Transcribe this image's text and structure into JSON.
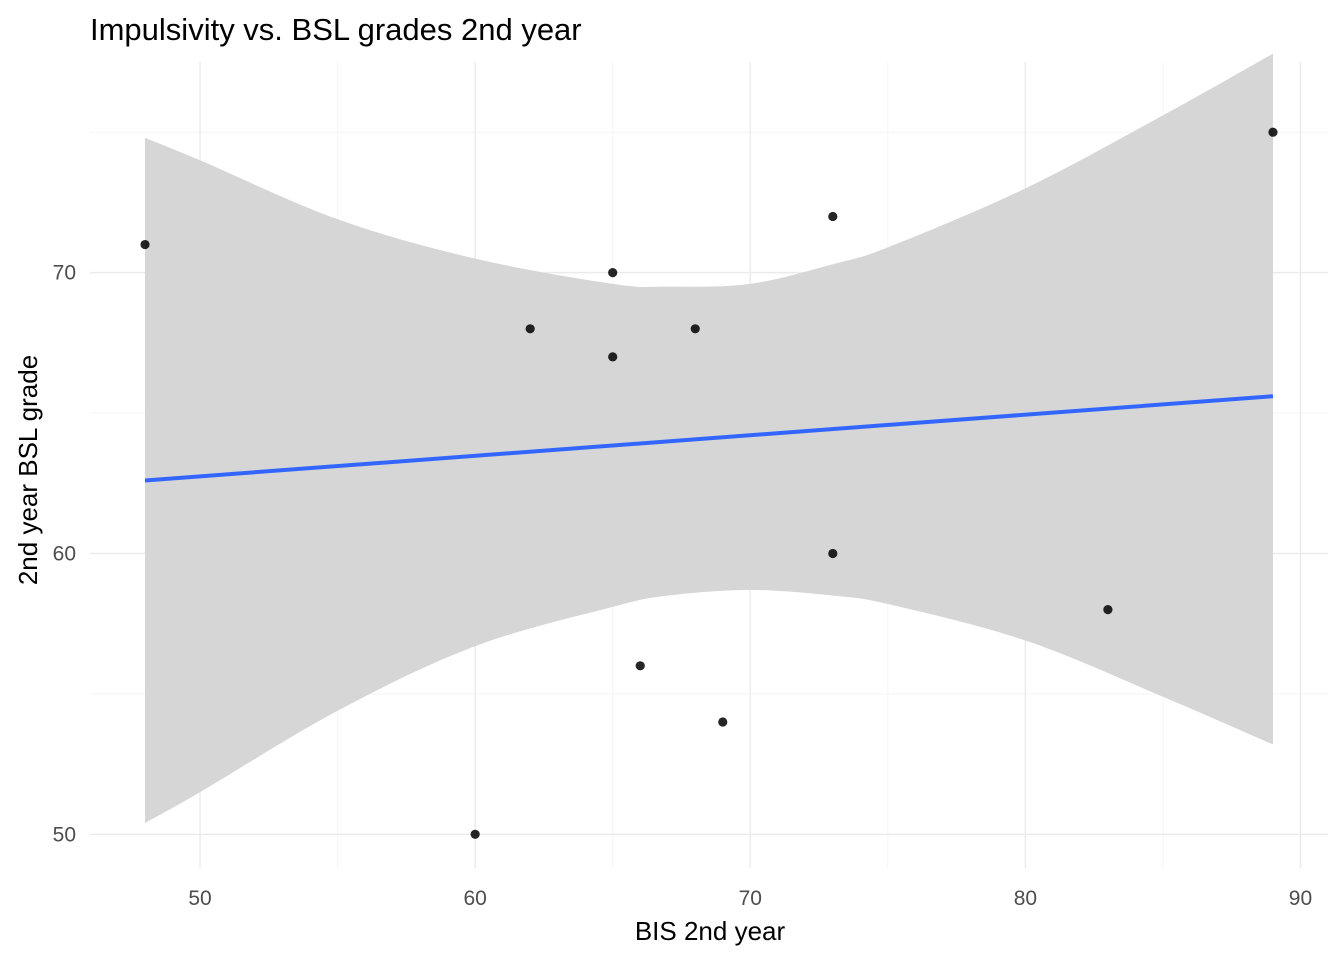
{
  "chart_data": {
    "type": "scatter",
    "title": "Impulsivity vs. BSL grades 2nd year",
    "xlabel": "BIS 2nd year",
    "ylabel": "2nd year BSL grade",
    "xlim": [
      46,
      91
    ],
    "ylim": [
      48.8,
      77.5
    ],
    "x_ticks": [
      50,
      60,
      70,
      80,
      90
    ],
    "y_ticks": [
      50,
      60,
      70
    ],
    "grid": true,
    "points": [
      {
        "x": 48,
        "y": 71
      },
      {
        "x": 60,
        "y": 50
      },
      {
        "x": 62,
        "y": 68
      },
      {
        "x": 65,
        "y": 70
      },
      {
        "x": 65,
        "y": 67
      },
      {
        "x": 66,
        "y": 56
      },
      {
        "x": 68,
        "y": 68
      },
      {
        "x": 69,
        "y": 54
      },
      {
        "x": 73,
        "y": 72
      },
      {
        "x": 73,
        "y": 60
      },
      {
        "x": 83,
        "y": 58
      },
      {
        "x": 89,
        "y": 75
      }
    ],
    "regression": {
      "method": "lm",
      "x_range": [
        48,
        89
      ],
      "y_at_start": 62.6,
      "y_at_end": 65.6,
      "line_color": "#3366ff",
      "ribbon_color": "#d6d6d6",
      "confidence_band": [
        {
          "x": 48,
          "lower": 50.4,
          "upper": 74.8
        },
        {
          "x": 50,
          "lower": 51.5,
          "upper": 74.0
        },
        {
          "x": 55,
          "lower": 54.4,
          "upper": 71.9
        },
        {
          "x": 60,
          "lower": 56.7,
          "upper": 70.5
        },
        {
          "x": 65,
          "lower": 58.1,
          "upper": 69.6
        },
        {
          "x": 67,
          "lower": 58.5,
          "upper": 69.5
        },
        {
          "x": 70,
          "lower": 58.7,
          "upper": 69.6
        },
        {
          "x": 73,
          "lower": 58.5,
          "upper": 70.3
        },
        {
          "x": 75,
          "lower": 58.2,
          "upper": 70.9
        },
        {
          "x": 80,
          "lower": 56.9,
          "upper": 73.0
        },
        {
          "x": 85,
          "lower": 54.9,
          "upper": 75.6
        },
        {
          "x": 89,
          "lower": 53.2,
          "upper": 77.8
        }
      ]
    },
    "point_color": "#000000"
  }
}
